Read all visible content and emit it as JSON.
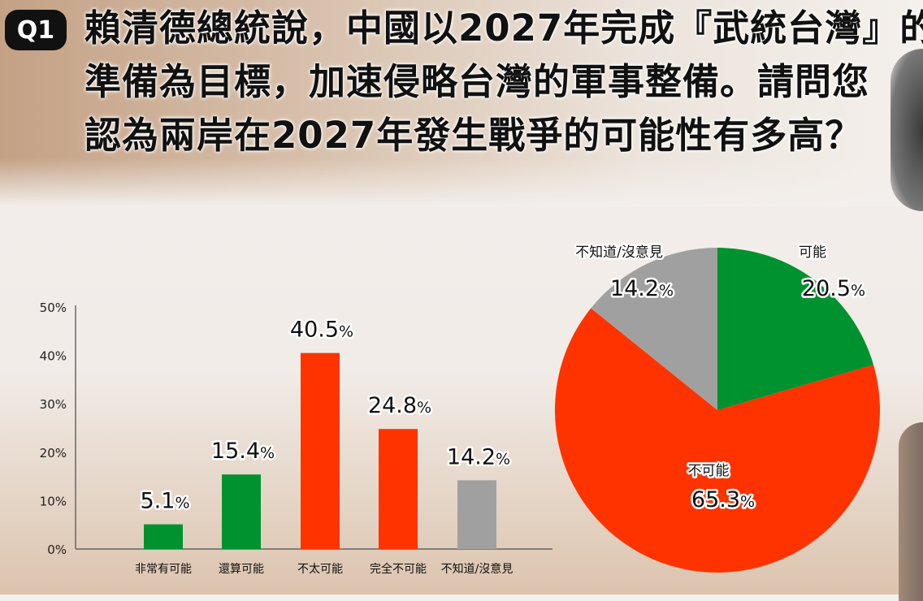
{
  "header": {
    "badge": "Q1",
    "title_lines": [
      "賴清德總統說，中國以2027年完成『武統台灣』的",
      "準備為目標，加速侵略台灣的軍事整備。請問您",
      "認為兩岸在2027年發生戰爭的可能性有多高？"
    ]
  },
  "chart_data": [
    {
      "type": "bar",
      "title": "",
      "xlabel": "",
      "ylabel": "",
      "ylim": [
        0,
        50
      ],
      "yticks": [
        "0%",
        "10%",
        "20%",
        "30%",
        "40%",
        "50%"
      ],
      "ytick_values": [
        0,
        10,
        20,
        30,
        40,
        50
      ],
      "categories": [
        "非常有可能",
        "還算可能",
        "不太可能",
        "完全不可能",
        "不知道/沒意見"
      ],
      "values": [
        5.1,
        15.4,
        40.5,
        24.8,
        14.2
      ],
      "value_labels": [
        "5.1",
        "15.4",
        "40.5",
        "24.8",
        "14.2"
      ],
      "unit": "%",
      "colors": [
        "#00922f",
        "#00922f",
        "#ff3300",
        "#ff3300",
        "#a0a0a0"
      ],
      "grid": false
    },
    {
      "type": "pie",
      "labels": [
        "可能",
        "不可能",
        "不知道/沒意見"
      ],
      "values": [
        20.5,
        65.3,
        14.2
      ],
      "value_labels": [
        "20.5",
        "65.3",
        "14.2"
      ],
      "unit": "%",
      "colors": [
        "#00922f",
        "#ff3300",
        "#a0a0a0"
      ],
      "start": "top, clockwise"
    }
  ]
}
